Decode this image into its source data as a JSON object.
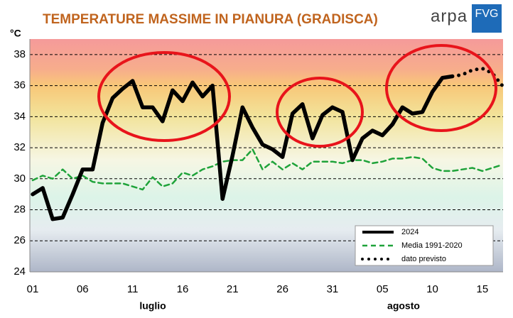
{
  "logo": {
    "text": "arpa",
    "badge": "FVG"
  },
  "chart_data": {
    "type": "line",
    "title": "TEMPERATURE MASSIME IN PIANURA (GRADISCA)",
    "y_label": "°C",
    "annotations": [
      "luglio",
      "agosto"
    ],
    "categories": [
      "01",
      null,
      null,
      null,
      null,
      "06",
      null,
      null,
      null,
      null,
      "11",
      null,
      null,
      null,
      null,
      "16",
      null,
      null,
      null,
      null,
      "21",
      null,
      null,
      null,
      null,
      "26",
      null,
      null,
      null,
      null,
      "31",
      null,
      null,
      null,
      null,
      "05",
      null,
      null,
      null,
      null,
      "10",
      null,
      null,
      null,
      null,
      "15",
      null,
      null
    ],
    "series": [
      {
        "name": "2024",
        "color": "#000000",
        "style": "solid",
        "values": [
          29.0,
          29.4,
          27.4,
          27.5,
          29.0,
          30.6,
          30.6,
          33.6,
          35.2,
          35.8,
          36.3,
          34.6,
          34.6,
          33.7,
          35.7,
          35.0,
          36.2,
          35.3,
          36.0,
          28.7,
          31.5,
          34.6,
          33.3,
          32.2,
          31.9,
          31.4,
          34.2,
          34.8,
          32.6,
          34.1,
          34.6,
          34.3,
          31.2,
          32.6,
          33.1,
          32.8,
          33.5,
          34.6,
          34.2,
          34.3,
          35.6,
          36.5,
          36.6,
          null,
          null,
          null,
          null,
          null
        ]
      },
      {
        "name": "Media 1991-2020",
        "color": "#1fa33a",
        "style": "dashed",
        "values": [
          29.9,
          30.2,
          30.0,
          30.6,
          30.0,
          30.2,
          29.8,
          29.7,
          29.7,
          29.7,
          29.5,
          29.3,
          30.1,
          29.5,
          29.7,
          30.4,
          30.2,
          30.6,
          30.8,
          31.1,
          31.2,
          31.2,
          31.9,
          30.6,
          31.1,
          30.6,
          31.0,
          30.6,
          31.1,
          31.1,
          31.1,
          31.0,
          31.2,
          31.2,
          31.0,
          31.1,
          31.3,
          31.3,
          31.4,
          31.3,
          30.7,
          30.5,
          30.5,
          30.6,
          30.7,
          30.5,
          30.7,
          30.9
        ]
      },
      {
        "name": "dato previsto",
        "color": "#000000",
        "style": "dotted",
        "values": [
          null,
          null,
          null,
          null,
          null,
          null,
          null,
          null,
          null,
          null,
          null,
          null,
          null,
          null,
          null,
          null,
          null,
          null,
          null,
          null,
          null,
          null,
          null,
          null,
          null,
          null,
          null,
          null,
          null,
          null,
          null,
          null,
          null,
          null,
          null,
          null,
          null,
          null,
          null,
          null,
          null,
          null,
          36.6,
          36.7,
          37.0,
          37.1,
          36.8,
          36.0
        ]
      }
    ],
    "ylim": [
      24,
      39
    ],
    "yticks": [
      24,
      26,
      28,
      30,
      32,
      34,
      36,
      38
    ],
    "grid": true
  }
}
